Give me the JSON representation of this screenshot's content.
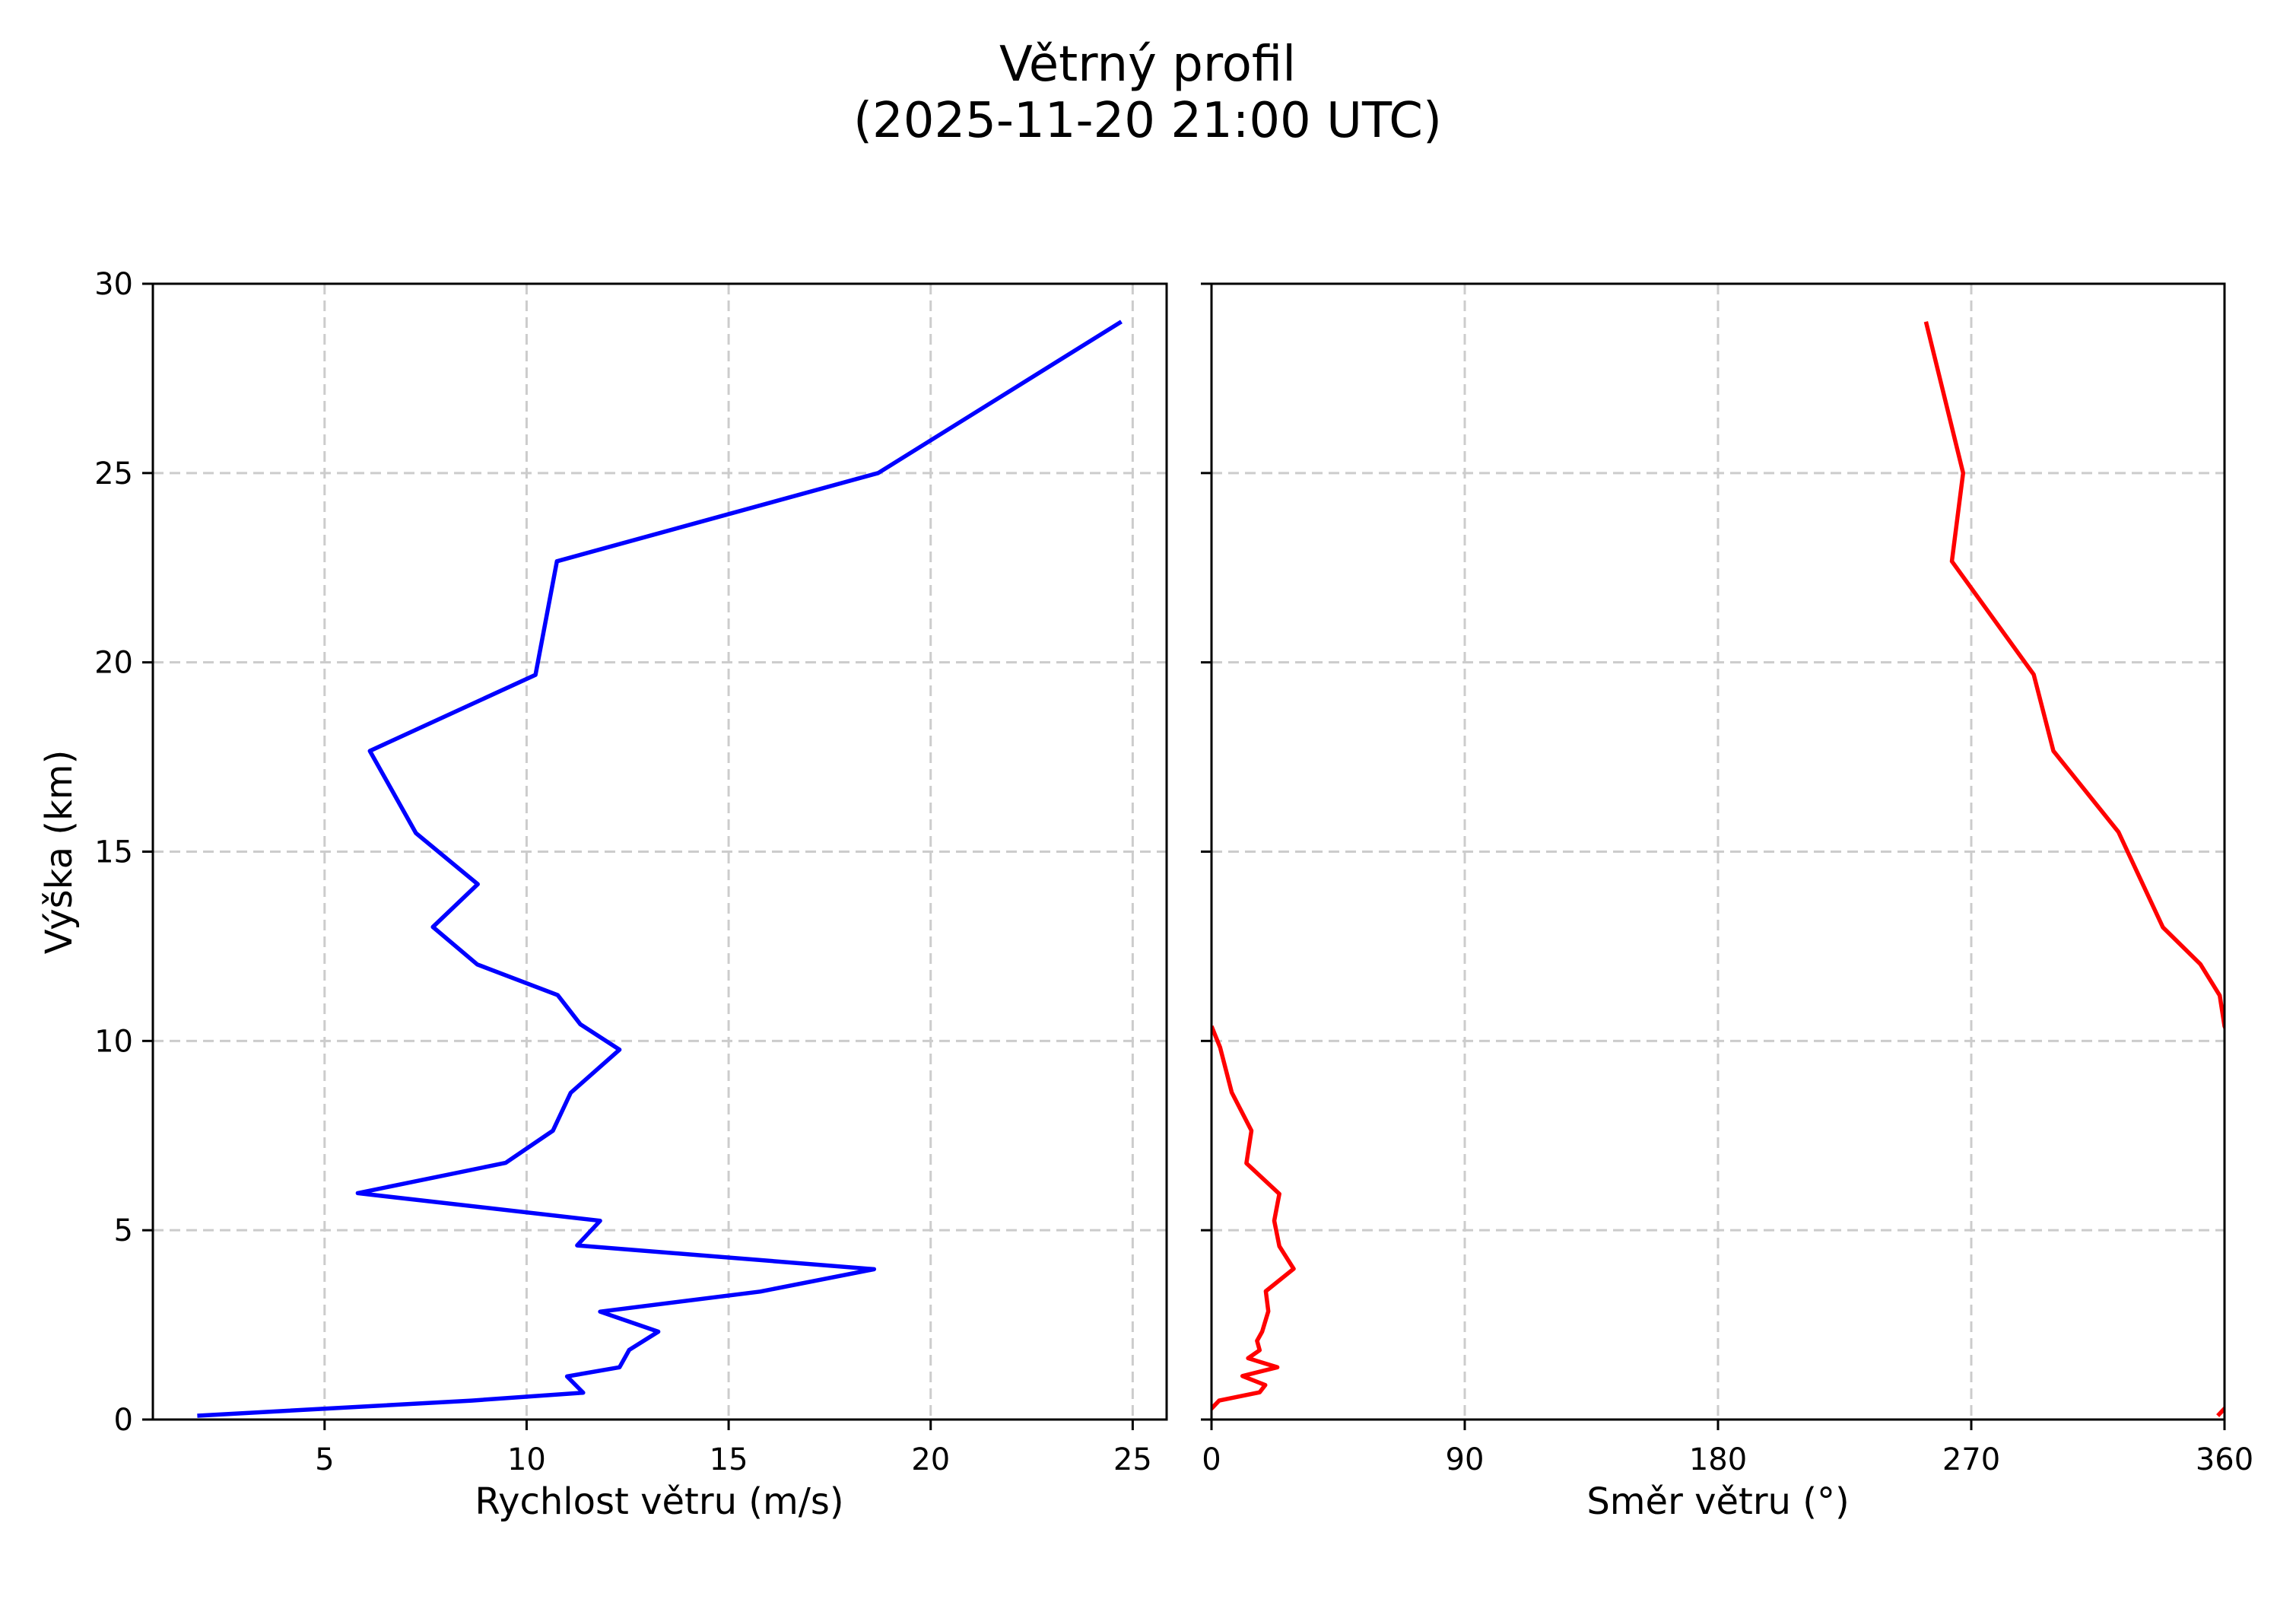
{
  "figure": {
    "title_line1": "Větrný profil",
    "title_line2": "(2025-11-20 21:00 UTC)"
  },
  "colors": {
    "speed_line": "#0000ff",
    "direction_line": "#ff0000",
    "grid": "#cccccc",
    "axes": "#000000",
    "background": "#ffffff"
  },
  "chart_data": [
    {
      "type": "line",
      "title": "Větrný profil (2025-11-20 21:00 UTC)",
      "xlabel": "Rychlost větru (m/s)",
      "ylabel": "Výška (km)",
      "xlim": [
        0.75,
        25.84
      ],
      "ylim": [
        0,
        30
      ],
      "xticks": [
        5,
        10,
        15,
        20,
        25
      ],
      "yticks": [
        0,
        5,
        10,
        15,
        20,
        25,
        30
      ],
      "grid": true,
      "grid_style": "dashed",
      "legend": null,
      "series": [
        {
          "name": "Rychlost větru",
          "color": "#0000ff",
          "points": [
            {
              "speed": 1.85,
              "height": 0.1
            },
            {
              "speed": 8.64,
              "height": 0.5
            },
            {
              "speed": 11.4,
              "height": 0.71
            },
            {
              "speed": 11.0,
              "height": 1.14
            },
            {
              "speed": 12.3,
              "height": 1.38
            },
            {
              "speed": 12.54,
              "height": 1.84
            },
            {
              "speed": 13.26,
              "height": 2.32
            },
            {
              "speed": 11.82,
              "height": 2.85
            },
            {
              "speed": 15.78,
              "height": 3.38
            },
            {
              "speed": 18.6,
              "height": 3.97
            },
            {
              "speed": 11.25,
              "height": 4.6
            },
            {
              "speed": 11.82,
              "height": 5.25
            },
            {
              "speed": 5.82,
              "height": 5.98
            },
            {
              "speed": 9.48,
              "height": 6.78
            },
            {
              "speed": 10.65,
              "height": 7.63
            },
            {
              "speed": 11.09,
              "height": 8.63
            },
            {
              "speed": 12.3,
              "height": 9.77
            },
            {
              "speed": 11.33,
              "height": 10.44
            },
            {
              "speed": 10.77,
              "height": 11.21
            },
            {
              "speed": 8.78,
              "height": 12.02
            },
            {
              "speed": 7.68,
              "height": 13.01
            },
            {
              "speed": 8.79,
              "height": 14.14
            },
            {
              "speed": 7.26,
              "height": 15.49
            },
            {
              "speed": 6.12,
              "height": 17.66
            },
            {
              "speed": 10.22,
              "height": 19.67
            },
            {
              "speed": 10.75,
              "height": 22.67
            },
            {
              "speed": 18.7,
              "height": 25.0
            },
            {
              "speed": 24.72,
              "height": 29.0
            }
          ]
        }
      ]
    },
    {
      "type": "line",
      "xlabel": "Směr větru (°)",
      "ylabel": "",
      "xlim": [
        0,
        360
      ],
      "ylim": [
        0,
        30
      ],
      "xticks": [
        0,
        90,
        180,
        270,
        360
      ],
      "yticks": [
        0,
        5,
        10,
        15,
        20,
        25,
        30
      ],
      "sharey": true,
      "grid": true,
      "grid_style": "dashed",
      "legend": null,
      "series": [
        {
          "name": "Směr větru",
          "color": "#ff0000",
          "points": [
            {
              "direction": 357.6,
              "height": 0.1
            },
            {
              "direction": 362.7,
              "height": 0.5,
              "note": "clipped at 360; continues at ~2.7°"
            },
            {
              "direction": 2.7,
              "height": 0.5
            },
            {
              "direction": 17.1,
              "height": 0.72
            },
            {
              "direction": 19.1,
              "height": 0.91
            },
            {
              "direction": 11.0,
              "height": 1.15
            },
            {
              "direction": 23.4,
              "height": 1.38
            },
            {
              "direction": 13.0,
              "height": 1.62
            },
            {
              "direction": 17.1,
              "height": 1.83
            },
            {
              "direction": 16.2,
              "height": 2.08
            },
            {
              "direction": 18.0,
              "height": 2.32
            },
            {
              "direction": 20.2,
              "height": 2.86
            },
            {
              "direction": 19.3,
              "height": 3.39
            },
            {
              "direction": 29.2,
              "height": 3.98
            },
            {
              "direction": 24.1,
              "height": 4.58
            },
            {
              "direction": 22.3,
              "height": 5.25
            },
            {
              "direction": 24.1,
              "height": 5.96
            },
            {
              "direction": 12.4,
              "height": 6.77
            },
            {
              "direction": 14.2,
              "height": 7.63
            },
            {
              "direction": 7.2,
              "height": 8.64
            },
            {
              "direction": 3.06,
              "height": 9.83
            },
            {
              "direction": 360.0,
              "height": 10.39
            },
            {
              "direction": 358.3,
              "height": 11.2
            },
            {
              "direction": 351.4,
              "height": 12.03
            },
            {
              "direction": 338.1,
              "height": 13.0
            },
            {
              "direction": 322.3,
              "height": 15.52
            },
            {
              "direction": 299.2,
              "height": 17.66
            },
            {
              "direction": 292.2,
              "height": 19.68
            },
            {
              "direction": 263.1,
              "height": 22.67
            },
            {
              "direction": 267.1,
              "height": 25.0
            },
            {
              "direction": 253.9,
              "height": 29.0
            }
          ]
        }
      ]
    }
  ],
  "left_panel": {
    "xlabel": "Rychlost větru (m/s)",
    "ylabel": "Výška (km)",
    "xtick_labels": [
      "5",
      "10",
      "15",
      "20",
      "25"
    ],
    "ytick_labels": [
      "0",
      "5",
      "10",
      "15",
      "20",
      "25",
      "30"
    ]
  },
  "right_panel": {
    "xlabel": "Směr větru (°)",
    "xtick_labels": [
      "0",
      "90",
      "180",
      "270",
      "360"
    ]
  }
}
